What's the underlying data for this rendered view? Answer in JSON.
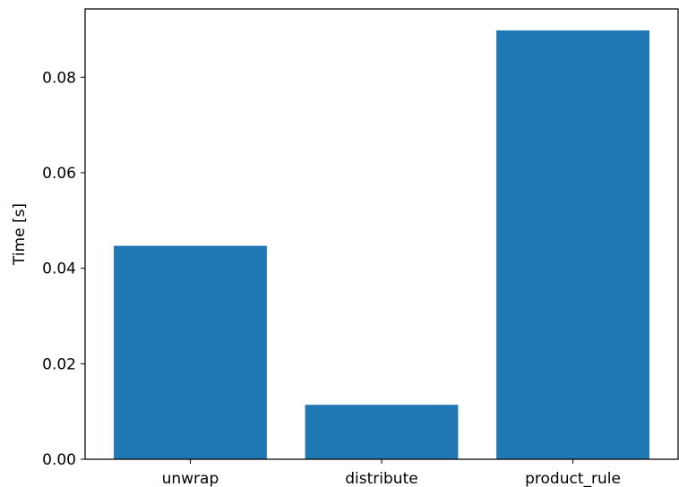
{
  "chart_data": {
    "type": "bar",
    "categories": [
      "unwrap",
      "distribute",
      "product_rule"
    ],
    "values": [
      0.0447,
      0.0114,
      0.0898
    ],
    "title": "",
    "xlabel": "",
    "ylabel": "Time [s]",
    "ylim": [
      0,
      0.0943
    ],
    "yticks": [
      0.0,
      0.02,
      0.04,
      0.06,
      0.08
    ],
    "ytick_labels": [
      "0.00",
      "0.02",
      "0.04",
      "0.06",
      "0.08"
    ],
    "grid": false,
    "bar_color": "#1f77b4"
  }
}
